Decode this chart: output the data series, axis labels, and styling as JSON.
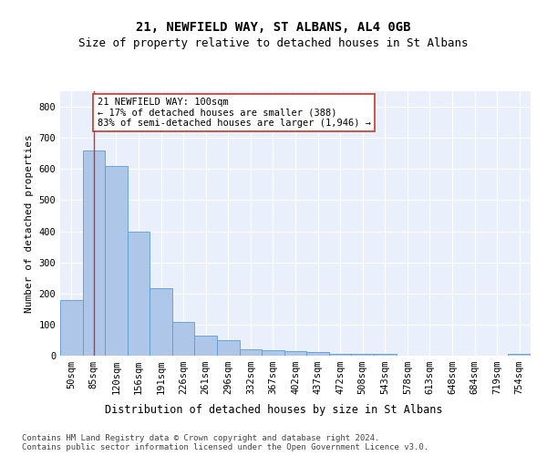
{
  "title1": "21, NEWFIELD WAY, ST ALBANS, AL4 0GB",
  "title2": "Size of property relative to detached houses in St Albans",
  "xlabel": "Distribution of detached houses by size in St Albans",
  "ylabel": "Number of detached properties",
  "footnote": "Contains HM Land Registry data © Crown copyright and database right 2024.\nContains public sector information licensed under the Open Government Licence v3.0.",
  "bar_labels": [
    "50sqm",
    "85sqm",
    "120sqm",
    "156sqm",
    "191sqm",
    "226sqm",
    "261sqm",
    "296sqm",
    "332sqm",
    "367sqm",
    "402sqm",
    "437sqm",
    "472sqm",
    "508sqm",
    "543sqm",
    "578sqm",
    "613sqm",
    "648sqm",
    "684sqm",
    "719sqm",
    "754sqm"
  ],
  "bar_heights": [
    178,
    660,
    610,
    400,
    218,
    108,
    65,
    50,
    20,
    17,
    15,
    13,
    7,
    5,
    6,
    0,
    0,
    0,
    0,
    0,
    5
  ],
  "bar_color": "#aec6e8",
  "bar_edge_color": "#5b9bd5",
  "background_color": "#eaf0fb",
  "grid_color": "#ffffff",
  "annotation_box_text": "21 NEWFIELD WAY: 100sqm\n← 17% of detached houses are smaller (388)\n83% of semi-detached houses are larger (1,946) →",
  "property_line_x": 1.0,
  "property_line_color": "#c0392b",
  "annotation_box_color": "#ffffff",
  "annotation_box_edge_color": "#c0392b",
  "ylim": [
    0,
    850
  ],
  "yticks": [
    0,
    100,
    200,
    300,
    400,
    500,
    600,
    700,
    800
  ],
  "title1_fontsize": 10,
  "title2_fontsize": 9,
  "xlabel_fontsize": 8.5,
  "ylabel_fontsize": 8,
  "tick_fontsize": 7.5,
  "annotation_fontsize": 7.5,
  "footnote_fontsize": 6.5
}
